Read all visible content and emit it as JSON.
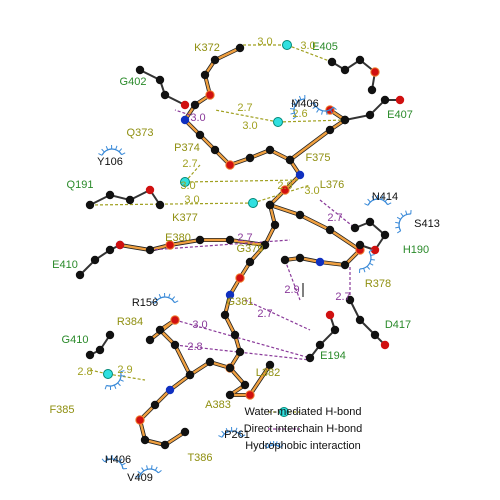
{
  "ligand_residues": [
    "K372",
    "Q373",
    "P374",
    "F375",
    "L376",
    "K377",
    "E380",
    "G379",
    "R378",
    "G381",
    "R384",
    "L382",
    "A383",
    "F385",
    "T386"
  ],
  "partner_residues": [
    "E405",
    "G402",
    "E407",
    "Q191",
    "E410",
    "H190",
    "D417",
    "E194",
    "G410"
  ],
  "hydrophobic_residues": [
    "M406",
    "Y106",
    "N414",
    "S413",
    "R156",
    "P261",
    "H406",
    "V409"
  ],
  "water_distances": [
    "3.0",
    "3.0",
    "2.7",
    "2.6",
    "3.0",
    "2.7",
    "3.0",
    "2.9",
    "3.0",
    "3.0",
    "2.8",
    "2.9"
  ],
  "direct_distances": [
    "3.0",
    "2.7",
    "2.7",
    "2.9",
    "2.7",
    "2.7",
    "3.0",
    "2.8"
  ],
  "legend": [
    "Water-mediated H-bond",
    "Direct interchain H-bond",
    "Hydrophobic interaction"
  ]
}
